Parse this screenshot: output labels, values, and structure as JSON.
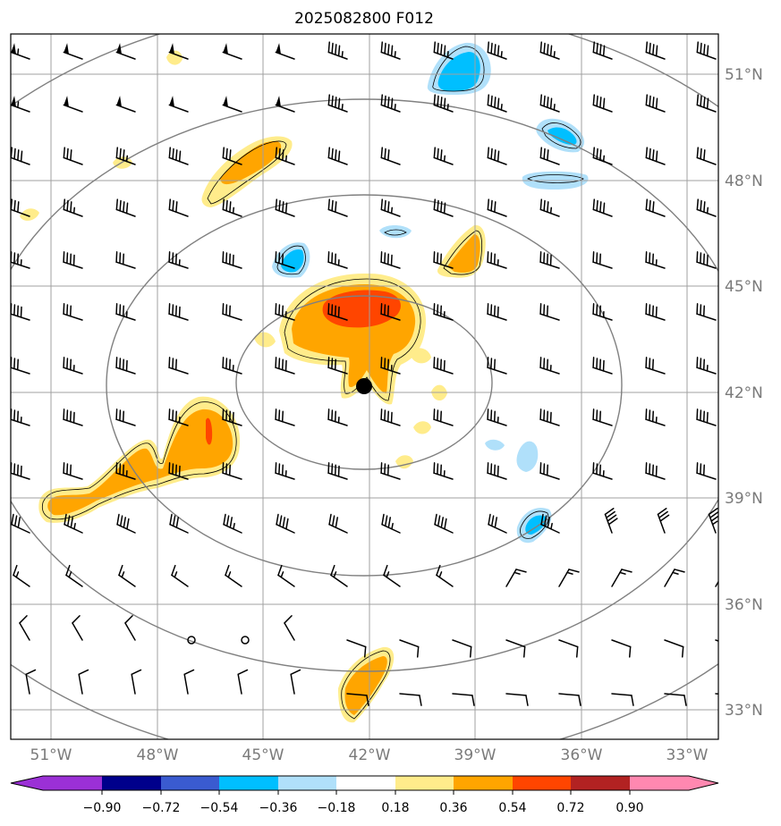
{
  "title": "2025082800 F012",
  "lon_labels": [
    "51°W",
    "48°W",
    "45°W",
    "42°W",
    "39°W",
    "36°W",
    "33°W"
  ],
  "lat_labels": [
    "51°N",
    "48°N",
    "45°N",
    "42°N",
    "39°N",
    "36°N",
    "33°N"
  ],
  "colorbar": {
    "tick_labels": [
      "−0.90",
      "−0.72",
      "−0.54",
      "−0.36",
      "−0.18",
      "0.18",
      "0.36",
      "0.54",
      "0.72",
      "0.90"
    ],
    "colors": [
      "#9b30d6",
      "#00008b",
      "#3a5bd0",
      "#00bfff",
      "#b0e0fa",
      "#ffffff",
      "#ffec8b",
      "#ffa500",
      "#ff4500",
      "#b22222",
      "#ff88b0"
    ]
  },
  "map": {
    "lon_range": [
      -52.1,
      -32.1
    ],
    "lat_range": [
      32.1,
      52.1
    ],
    "center_marker": {
      "lon": -42.0,
      "lat": 42.2
    },
    "range_rings": 4,
    "fill_colors": {
      "pos_light": "#ffec8b",
      "pos_mid": "#ffa500",
      "pos_high": "#ff4500",
      "neg_light": "#b0e0fa",
      "neg_mid": "#00bfff"
    }
  }
}
